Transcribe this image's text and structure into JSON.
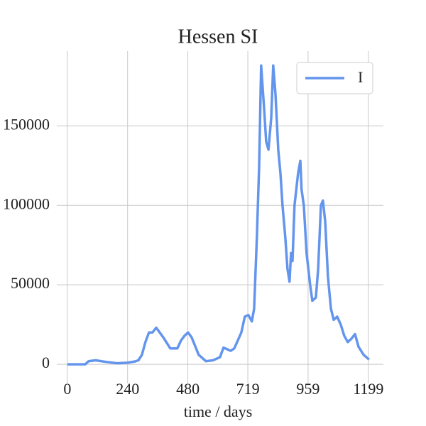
{
  "chart_data": {
    "type": "line",
    "title": "Hessen SI",
    "xlabel": "time / days",
    "x": [
      0,
      71,
      85,
      113,
      156,
      198,
      240,
      269,
      283,
      297,
      311,
      325,
      339,
      354,
      368,
      382,
      410,
      438,
      453,
      467,
      481,
      495,
      523,
      552,
      580,
      608,
      622,
      651,
      665,
      693,
      707,
      721,
      735,
      744,
      755,
      764,
      772,
      784,
      792,
      801,
      812,
      820,
      829,
      840,
      849,
      857,
      868,
      877,
      885,
      891,
      897,
      905,
      919,
      928,
      933,
      942,
      953,
      967,
      976,
      990,
      999,
      1010,
      1018,
      1027,
      1038,
      1050,
      1061,
      1075,
      1089,
      1103,
      1117,
      1131,
      1146,
      1160,
      1180,
      1202
    ],
    "series": [
      {
        "name": "I",
        "color": "#6495ed",
        "values": [
          0,
          0,
          2000,
          2500,
          1500,
          700,
          1000,
          1800,
          2500,
          6000,
          14000,
          20000,
          20000,
          23000,
          20000,
          17000,
          10000,
          10000,
          15000,
          18000,
          20000,
          17000,
          6000,
          2000,
          2500,
          4500,
          10500,
          8500,
          10000,
          20000,
          30000,
          31000,
          27000,
          35000,
          80000,
          125000,
          188000,
          160000,
          140000,
          135000,
          155000,
          188000,
          170000,
          135000,
          120000,
          100000,
          80000,
          60000,
          52000,
          70000,
          65000,
          100000,
          120000,
          128000,
          110000,
          100000,
          70000,
          50000,
          40000,
          42000,
          60000,
          100000,
          103000,
          90000,
          55000,
          35000,
          28000,
          30000,
          25000,
          18000,
          14000,
          16000,
          19000,
          11000,
          6000,
          3000
        ]
      }
    ],
    "xlim": [
      -42,
      1259
    ],
    "ylim": [
      -12000,
      197000
    ],
    "xticks": [
      0,
      240,
      480,
      719,
      959,
      1199
    ],
    "yticks": [
      0,
      50000,
      100000,
      150000
    ],
    "grid": true,
    "legend": "upper right"
  }
}
